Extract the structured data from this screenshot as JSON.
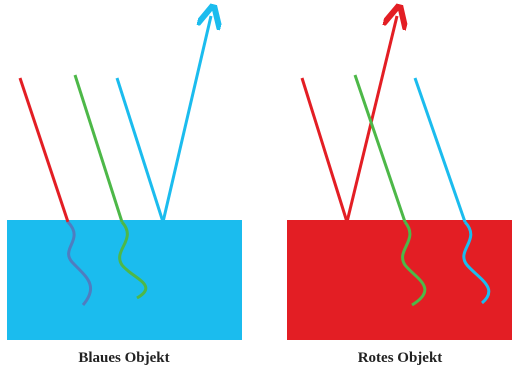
{
  "labels": {
    "left": "Blaues Objekt",
    "right": "Rotes Objekt"
  }
}
